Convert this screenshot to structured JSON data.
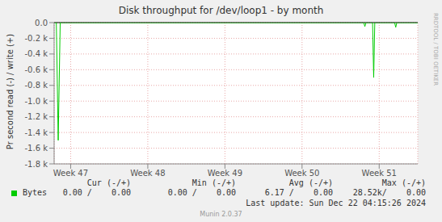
{
  "chart_data": {
    "type": "line",
    "title": "Disk throughput for /dev/loop1 - by month",
    "y_label": "Pr second read (-) / write (+)",
    "x": [
      0,
      0.2,
      0.37,
      0.55,
      28.1,
      28.2,
      28.3,
      28.9,
      29.0,
      29.1,
      30.9,
      31.0,
      31.1,
      33
    ],
    "series": [
      {
        "name": "Bytes",
        "color": "#00cc00",
        "values": [
          0,
          0,
          -1500,
          0,
          0,
          -50,
          0,
          0,
          -700,
          0,
          0,
          -60,
          0,
          0
        ]
      }
    ],
    "xlim": [
      0,
      33
    ],
    "xticks": [
      {
        "value": 1.5,
        "label": "Week 47"
      },
      {
        "value": 8.5,
        "label": "Week 48"
      },
      {
        "value": 15.5,
        "label": "Week 49"
      },
      {
        "value": 22.5,
        "label": "Week 50"
      },
      {
        "value": 29.5,
        "label": "Week 51"
      }
    ],
    "ylim": [
      -1800,
      0
    ],
    "yticks": [
      {
        "value": 0,
        "label": "0.0"
      },
      {
        "value": -200,
        "label": "-0.2 k"
      },
      {
        "value": -400,
        "label": "-0.4 k"
      },
      {
        "value": -600,
        "label": "-0.6 k"
      },
      {
        "value": -800,
        "label": "-0.8 k"
      },
      {
        "value": -1000,
        "label": "-1.0 k"
      },
      {
        "value": -1200,
        "label": "-1.2 k"
      },
      {
        "value": -1400,
        "label": "-1.4 k"
      },
      {
        "value": -1600,
        "label": "-1.6 k"
      },
      {
        "value": -1800,
        "label": "-1.8 k"
      }
    ],
    "grid": true,
    "legend_table": {
      "headers": [
        "Cur (-/+)",
        "Min (-/+)",
        "Avg (-/+)",
        "Max (-/+)"
      ],
      "cells": [
        "0.00 /    0.00",
        "0.00 /    0.00",
        "6.17 /    0.00",
        "28.52k/    0.00"
      ]
    },
    "annotations": [
      "Last update: Sun Dec 22 04:15:26 2024",
      "Munin 2.0.37",
      "RRDTOOL / TOBI OETIKER"
    ]
  }
}
